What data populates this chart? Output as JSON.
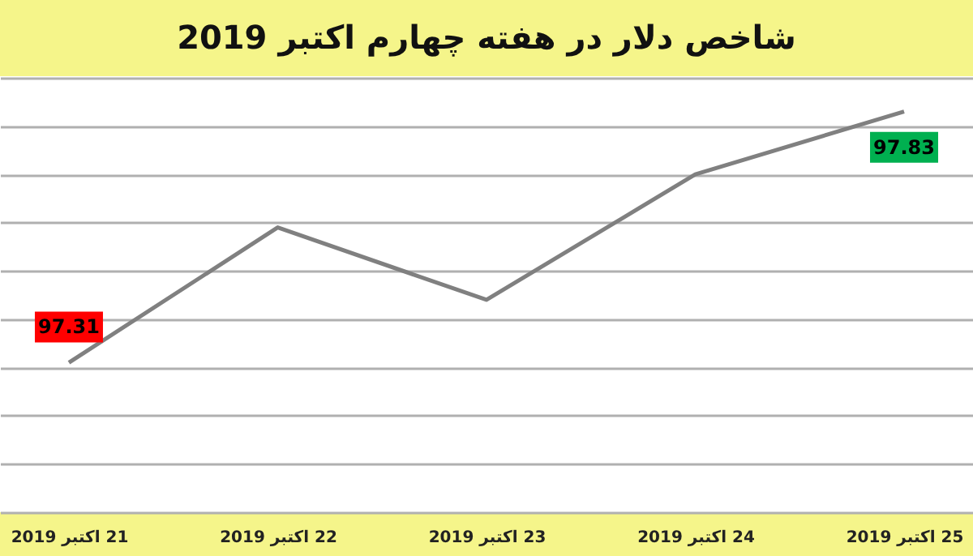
{
  "chart_data": {
    "type": "line",
    "title": "شاخص دلار در هفته چهارم اکتبر 2019",
    "categories": [
      "21 اکتبر 2019",
      "22 اکتبر 2019",
      "23 اکتبر 2019",
      "24 اکتبر 2019",
      "25 اکتبر 2019"
    ],
    "series": [
      {
        "color": "#808080",
        "values": [
          97.31,
          97.59,
          97.44,
          97.7,
          97.83
        ],
        "value_labels": [
          "97.31",
          null,
          null,
          null,
          "97.83"
        ]
      }
    ],
    "ylim": [
      97.0,
      97.9
    ],
    "yticks": [
      {
        "value": 97.0,
        "label": null
      },
      {
        "value": 97.1,
        "label": null
      },
      {
        "value": 97.2,
        "label": null
      },
      {
        "value": 97.3,
        "label": null
      },
      {
        "value": 97.4,
        "label": null
      },
      {
        "value": 97.5,
        "label": null
      },
      {
        "value": 97.6,
        "label": null
      },
      {
        "value": 97.7,
        "label": null
      },
      {
        "value": 97.8,
        "label": null
      },
      {
        "value": 97.9,
        "label": null
      }
    ],
    "tick_labels": "x",
    "grid": "y",
    "marker": "none",
    "line_style": "solid"
  }
}
